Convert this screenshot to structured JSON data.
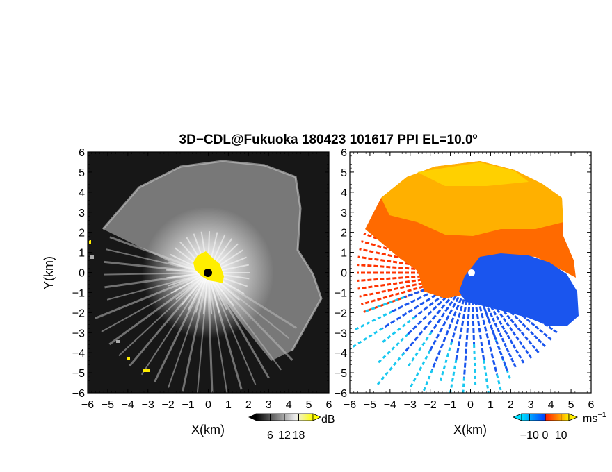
{
  "figure": {
    "title": "3D−CDL@Fukuoka 180423 101617 PPI EL=10.0º"
  },
  "chart_data": [
    {
      "type": "heatmap",
      "xlabel": "X(km)",
      "ylabel": "Y(km)",
      "xlim": [
        -6,
        6
      ],
      "ylim": [
        -6,
        6
      ],
      "x_ticks": [
        "−6",
        "−5",
        "−4",
        "−3",
        "−2",
        "−1",
        "0",
        "1",
        "2",
        "3",
        "4",
        "5",
        "6"
      ],
      "y_ticks": [
        "6",
        "5",
        "4",
        "3",
        "2",
        "1",
        "0",
        "−1",
        "−2",
        "−3",
        "−4",
        "−5",
        "−6"
      ],
      "colorbar": {
        "unit": "dB",
        "range": [
          0,
          24
        ],
        "ticks": [
          "6",
          "12",
          "18"
        ],
        "colors": [
          "#000000",
          "#ffffff",
          "#ffff00"
        ]
      },
      "colors": {
        "background": "#111111",
        "echo": "#cccccc",
        "high": "#ffee00"
      }
    },
    {
      "type": "heatmap",
      "xlabel": "X(km)",
      "xlim": [
        -6,
        6
      ],
      "ylim": [
        -6,
        6
      ],
      "x_ticks": [
        "−6",
        "−5",
        "−4",
        "−3",
        "−2",
        "−1",
        "0",
        "1",
        "2",
        "3",
        "4",
        "5",
        "6"
      ],
      "y_ticks": [
        "6",
        "5",
        "4",
        "3",
        "2",
        "1",
        "0",
        "−1",
        "−2",
        "−3",
        "−4",
        "−5",
        "−6"
      ],
      "colorbar": {
        "unit": "ms",
        "unit_sup": "−1",
        "range": [
          -15,
          15
        ],
        "ticks": [
          "−10",
          "0",
          "10"
        ],
        "colors": [
          "#00e0ff",
          "#0044ff",
          "#ff2200",
          "#ffee00"
        ]
      },
      "colors": {
        "toward": "#1a55ee",
        "away": "#ff4400",
        "far_away": "#ffbb00",
        "far_toward": "#19c8f0"
      }
    }
  ]
}
